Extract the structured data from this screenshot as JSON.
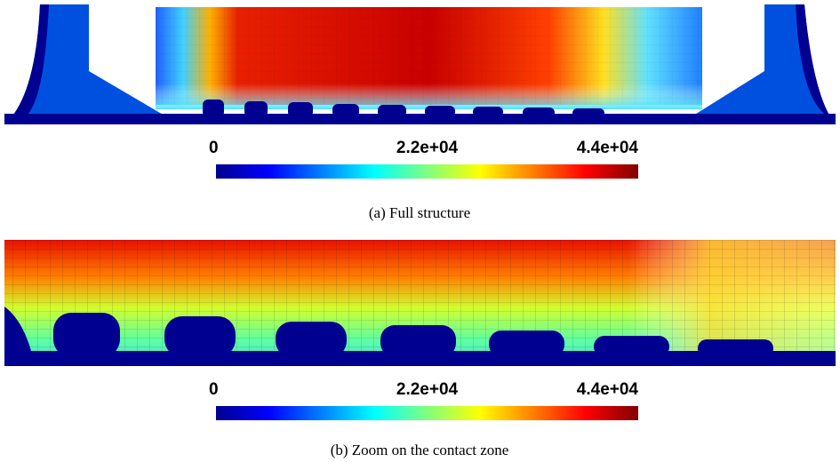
{
  "panels": [
    {
      "colorbar": {
        "lim": [
          0,
          44000
        ],
        "ticks": [
          0,
          {
            "value": 22000,
            "label": "2.2e+04"
          },
          {
            "value": 44000,
            "label": "4.4e+04"
          }
        ]
      },
      "caption": "(a) Full structure"
    },
    {
      "colorbar": {
        "lim": [
          0,
          44000
        ],
        "ticks": [
          0,
          {
            "value": 22000,
            "label": "2.2e+04"
          },
          {
            "value": 44000,
            "label": "4.4e+04"
          }
        ]
      },
      "caption": "(b) Zoom on the contact zone"
    }
  ]
}
